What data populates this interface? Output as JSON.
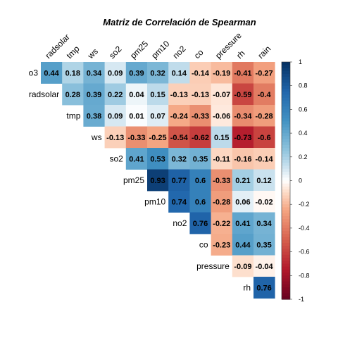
{
  "chart_data": {
    "type": "heatmap",
    "title": "Matriz de Correlación de Spearman",
    "row_labels": [
      "o3",
      "radsolar",
      "tmp",
      "ws",
      "so2",
      "pm25",
      "pm10",
      "no2",
      "co",
      "pressure",
      "rh"
    ],
    "col_labels": [
      "radsolar",
      "tmp",
      "ws",
      "so2",
      "pm25",
      "pm10",
      "no2",
      "co",
      "pressure",
      "rh",
      "rain"
    ],
    "values": [
      [
        0.44,
        0.18,
        0.34,
        0.09,
        0.39,
        0.32,
        0.14,
        -0.14,
        -0.19,
        -0.41,
        -0.27
      ],
      [
        null,
        0.28,
        0.39,
        0.22,
        0.04,
        0.15,
        -0.13,
        -0.13,
        -0.07,
        -0.59,
        -0.4
      ],
      [
        null,
        null,
        0.38,
        0.09,
        0.01,
        0.07,
        -0.24,
        -0.33,
        -0.06,
        -0.34,
        -0.28
      ],
      [
        null,
        null,
        null,
        -0.13,
        -0.33,
        -0.25,
        -0.54,
        -0.62,
        0.15,
        -0.73,
        -0.6
      ],
      [
        null,
        null,
        null,
        null,
        0.41,
        0.53,
        0.32,
        0.35,
        -0.11,
        -0.16,
        -0.14
      ],
      [
        null,
        null,
        null,
        null,
        null,
        0.93,
        0.77,
        0.6,
        -0.33,
        0.21,
        0.12
      ],
      [
        null,
        null,
        null,
        null,
        null,
        null,
        0.74,
        0.6,
        -0.28,
        0.06,
        -0.02
      ],
      [
        null,
        null,
        null,
        null,
        null,
        null,
        null,
        0.76,
        -0.22,
        0.41,
        0.34
      ],
      [
        null,
        null,
        null,
        null,
        null,
        null,
        null,
        null,
        -0.23,
        0.44,
        0.35
      ],
      [
        null,
        null,
        null,
        null,
        null,
        null,
        null,
        null,
        null,
        -0.09,
        -0.04
      ],
      [
        null,
        null,
        null,
        null,
        null,
        null,
        null,
        null,
        null,
        null,
        0.76
      ]
    ],
    "value_range": [
      -1,
      1
    ],
    "color_scale": {
      "type": "diverging",
      "low": "#67001F",
      "mid": "#FFFFFF",
      "high": "#053061"
    },
    "colorbar_ticks": [
      "1",
      "0.8",
      "0.6",
      "0.4",
      "0.2",
      "0",
      "-0.2",
      "-0.4",
      "-0.6",
      "-0.8",
      "-1"
    ],
    "legend_position": "right",
    "grid": false
  }
}
